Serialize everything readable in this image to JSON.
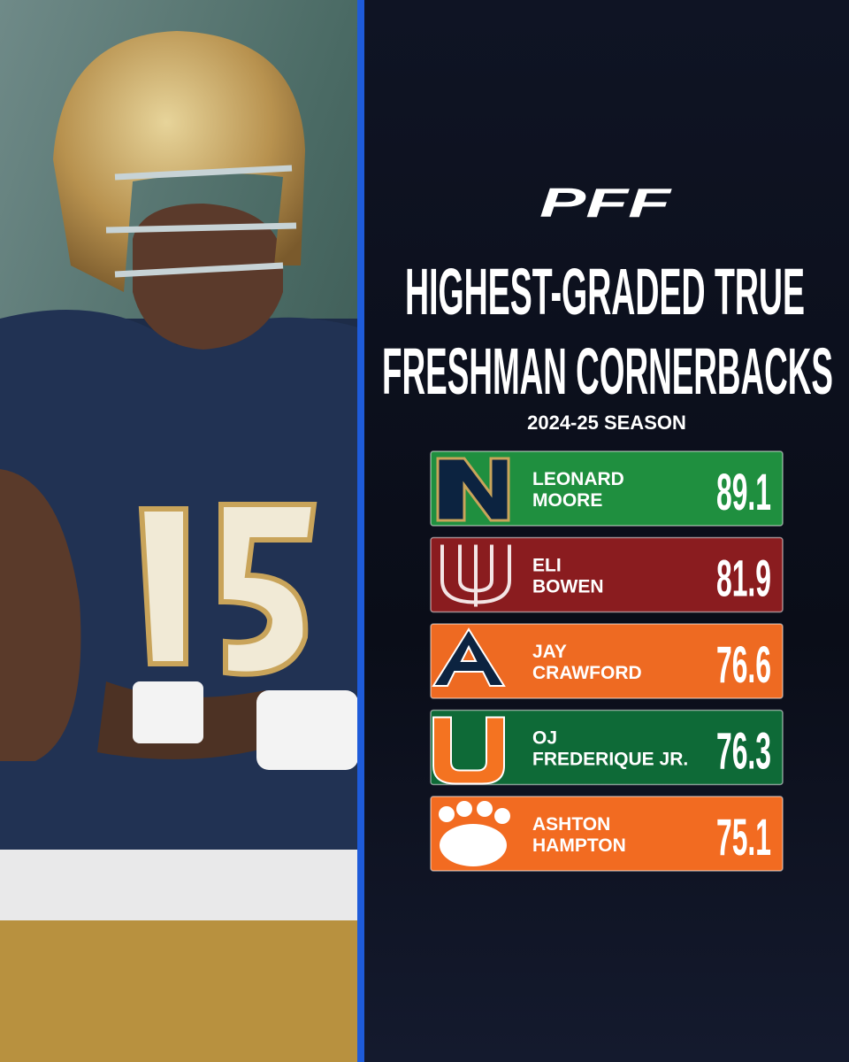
{
  "brand": "PFF",
  "title": [
    "HIGHEST-GRADED TRUE",
    "FRESHMAN CORNERBACKS"
  ],
  "subtitle": "2024-25 SEASON",
  "rows": [
    {
      "first": "LEONARD",
      "last": "MOORE",
      "grade": 89.1
    },
    {
      "first": "ELI",
      "last": "BOWEN",
      "grade": 81.9
    },
    {
      "first": "JAY",
      "last": "CRAWFORD",
      "grade": 76.6
    },
    {
      "first": "OJ",
      "last": "FREDERIQUE JR.",
      "grade": 76.3
    },
    {
      "first": "ASHTON",
      "last": "HAMPTON",
      "grade": 75.1
    }
  ]
}
